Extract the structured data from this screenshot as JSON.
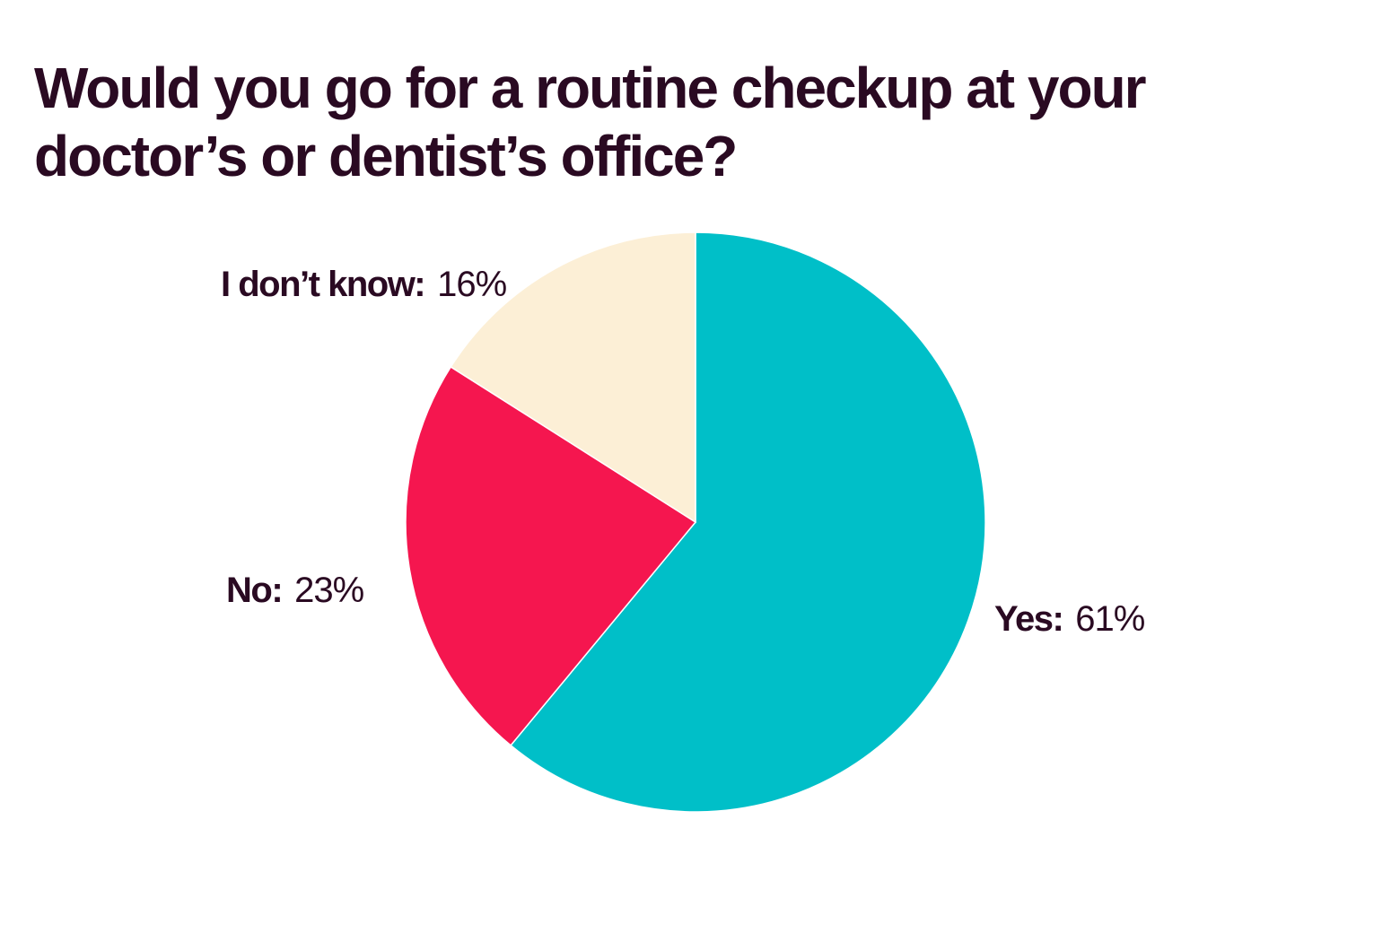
{
  "chart_data": {
    "type": "pie",
    "title": "Would you go for a routine checkup at your doctor’s or dentist’s office?",
    "slices": [
      {
        "label": "Yes:",
        "value": 61,
        "value_text": "61%",
        "color": "#00bfc8"
      },
      {
        "label": "No:",
        "value": 23,
        "value_text": "23%",
        "color": "#f5164f"
      },
      {
        "label": "I don’t know:",
        "value": 16,
        "value_text": "16%",
        "color": "#fcefd6"
      }
    ],
    "start": "12 o'clock",
    "direction": "clockwise"
  }
}
